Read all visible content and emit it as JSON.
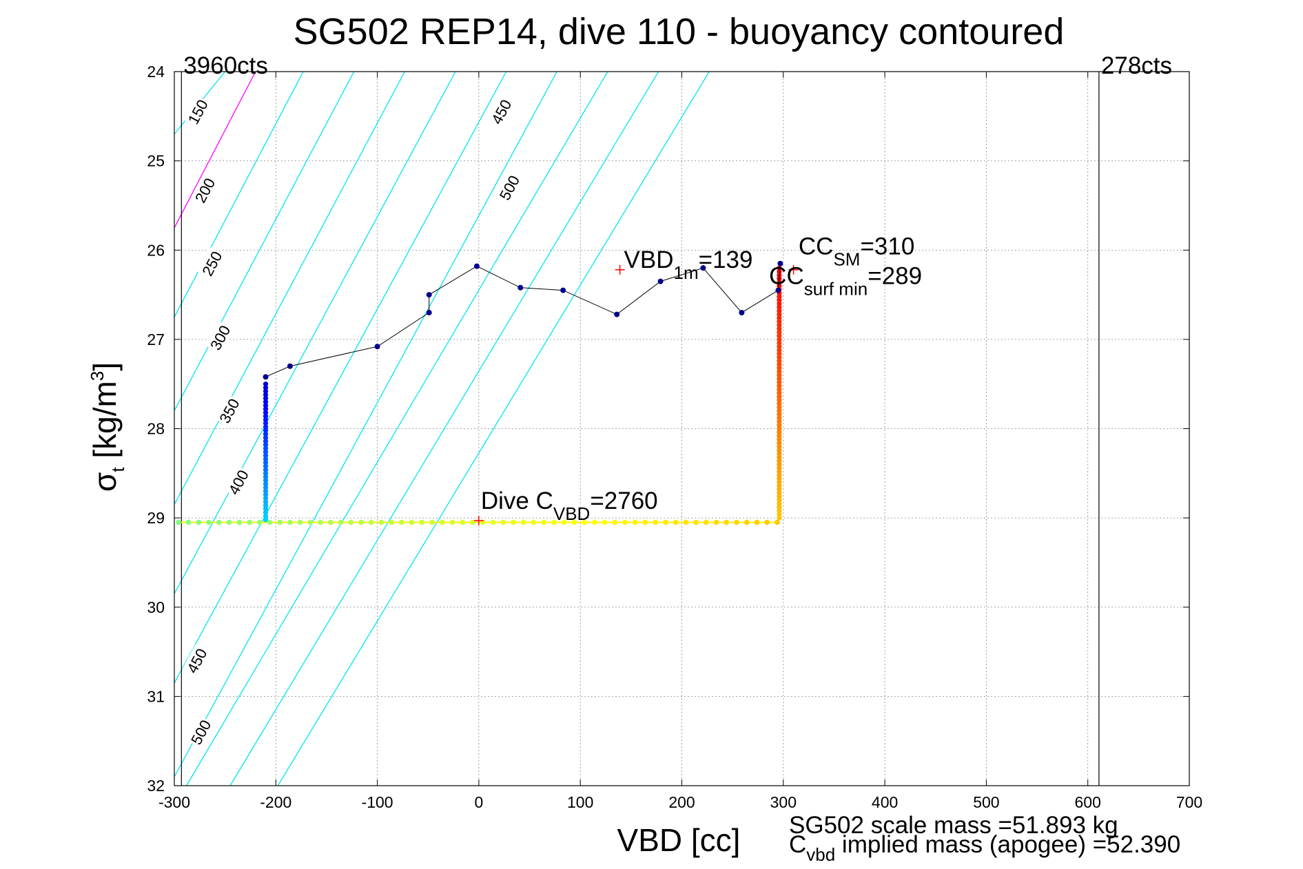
{
  "chart_data": {
    "type": "scatter",
    "title": "SG502 REP14, dive 110 - buoyancy contoured",
    "xlabel": "VBD [cc]",
    "ylabel": {
      "base": "σ",
      "sub": "t",
      "rest": " [kg/m",
      "sup": "3",
      "close": "]"
    },
    "xlim": [
      -300,
      700
    ],
    "ylim": [
      24,
      32
    ],
    "y_reversed": true,
    "grid": true,
    "x_ticks": [
      "-300",
      "-200",
      "-100",
      "0",
      "100",
      "200",
      "300",
      "400",
      "500",
      "600",
      "700"
    ],
    "y_ticks": [
      "24",
      "25",
      "26",
      "27",
      "28",
      "29",
      "30",
      "31",
      "32"
    ],
    "limit_lines": [
      {
        "x": -293,
        "label": "3960cts"
      },
      {
        "x": 611,
        "label": "278cts"
      }
    ],
    "buoyancy_contours": [
      {
        "level": "150",
        "color": "#ff00ff",
        "points": [
          [
            -300,
            25.75
          ],
          [
            -220,
            24.0
          ]
        ]
      },
      {
        "level": "150",
        "color": "#00e5ee",
        "points": [
          [
            -300,
            24.7
          ],
          [
            -250,
            24.0
          ]
        ]
      },
      {
        "level": "200",
        "color": "#00e5ee",
        "points": [
          [
            -300,
            26.75
          ],
          [
            -173,
            24.0
          ]
        ]
      },
      {
        "level": "250",
        "color": "#00e5ee",
        "points": [
          [
            -300,
            27.8
          ],
          [
            -123,
            24.0
          ]
        ]
      },
      {
        "level": "300",
        "color": "#00e5ee",
        "points": [
          [
            -300,
            28.85
          ],
          [
            -73,
            24.0
          ]
        ]
      },
      {
        "level": "350",
        "color": "#00e5ee",
        "points": [
          [
            -300,
            29.85
          ],
          [
            -23,
            24.0
          ]
        ]
      },
      {
        "level": "400",
        "color": "#00e5ee",
        "points": [
          [
            -300,
            30.85
          ],
          [
            27,
            24.0
          ]
        ]
      },
      {
        "level": "450",
        "color": "#00e5ee",
        "points": [
          [
            -300,
            31.9
          ],
          [
            77,
            24.0
          ]
        ]
      },
      {
        "level": "500",
        "color": "#00e5ee",
        "points": [
          [
            -288,
            32.0
          ],
          [
            127,
            24.0
          ]
        ]
      },
      {
        "level": "450",
        "color": "#00e5ee",
        "points": [
          [
            -245,
            32.0
          ],
          [
            177,
            24.0
          ]
        ]
      },
      {
        "level": "500",
        "color": "#00e5ee",
        "points": [
          [
            -198,
            32.0
          ],
          [
            227,
            24.0
          ]
        ]
      }
    ],
    "contour_labels": [
      {
        "text": "150",
        "x": -277,
        "y": 24.45
      },
      {
        "text": "200",
        "x": -270,
        "y": 25.33
      },
      {
        "text": "250",
        "x": -263,
        "y": 26.15
      },
      {
        "text": "300",
        "x": -255,
        "y": 26.98
      },
      {
        "text": "350",
        "x": -246,
        "y": 27.8
      },
      {
        "text": "400",
        "x": -237,
        "y": 28.6
      },
      {
        "text": "450",
        "x": 22,
        "y": 24.45
      },
      {
        "text": "500",
        "x": 30,
        "y": 25.3
      },
      {
        "text": "450",
        "x": -278,
        "y": 30.6
      },
      {
        "text": "500",
        "x": -274,
        "y": 31.4
      }
    ],
    "profile": {
      "name": "",
      "color": "#000000",
      "marker_color": "#00008b",
      "points": [
        [
          -210,
          27.42
        ],
        [
          -186,
          27.3
        ],
        [
          -100,
          27.08
        ],
        [
          -49,
          26.7
        ],
        [
          -49,
          26.5
        ],
        [
          -2,
          26.18
        ],
        [
          41,
          26.42
        ],
        [
          83,
          26.45
        ],
        [
          136,
          26.72
        ],
        [
          179,
          26.35
        ],
        [
          221,
          26.2
        ],
        [
          259,
          26.7
        ],
        [
          295,
          26.45
        ],
        [
          297,
          26.15
        ]
      ]
    },
    "vertical_descent": {
      "x": -210,
      "y_from": 27.5,
      "y_to": 29.02
    },
    "vertical_climb": {
      "x": 296,
      "y_from": 26.2,
      "y_to": 29.02
    },
    "horizontal_pump": {
      "y": 29.05,
      "x_from": -296,
      "x_to": 296
    },
    "annotations": [
      {
        "text": "Dive C",
        "sub": "VBD",
        "rest": "=2760",
        "x": 2,
        "y": 28.9,
        "color": "#000000",
        "marker": {
          "x": 0,
          "y": 29.03
        }
      },
      {
        "text": "VBD",
        "sub": "1m",
        "rest": "=139",
        "x": 143,
        "y": 26.2,
        "color": "#ff0000",
        "marker": {
          "x": 139,
          "y": 26.22
        }
      },
      {
        "text": "CC",
        "sub": "SM",
        "rest": "=310",
        "x": 315,
        "y": 26.05,
        "color": "#ff0000",
        "marker": {
          "x": 310,
          "y": 26.22
        }
      },
      {
        "text": "CC",
        "sub": "surf min",
        "rest": "=289",
        "x": 286,
        "y": 26.38,
        "color": "#ff0000"
      }
    ],
    "footnotes": [
      {
        "text": "SG502 scale mass =51.893 kg"
      },
      {
        "prefix": "C",
        "sub": "vbd",
        "text": " implied mass (apogee) =52.390"
      }
    ]
  }
}
